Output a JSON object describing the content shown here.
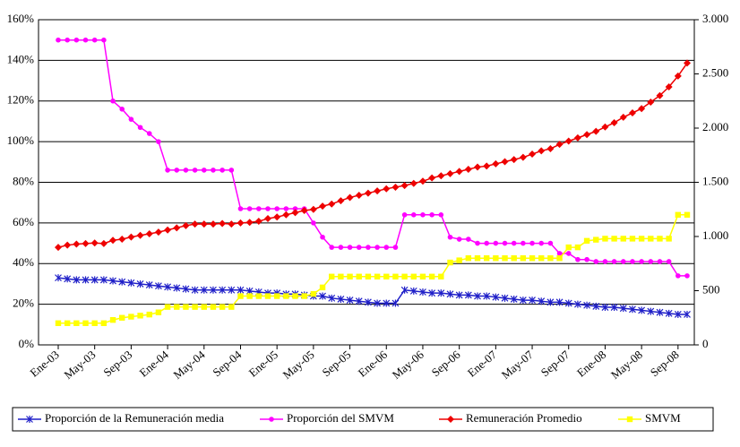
{
  "chart_data": {
    "type": "line",
    "categories": [
      "Ene-03",
      null,
      null,
      null,
      "May-03",
      null,
      null,
      null,
      "Sep-03",
      null,
      null,
      null,
      "Ene-04",
      null,
      null,
      null,
      "May-04",
      null,
      null,
      null,
      "Sep-04",
      null,
      null,
      null,
      "Ene-05",
      null,
      null,
      null,
      "May-05",
      null,
      null,
      null,
      "Sep-05",
      null,
      null,
      null,
      "Ene-06",
      null,
      null,
      null,
      "May-06",
      null,
      null,
      null,
      "Sep-06",
      null,
      null,
      null,
      "Ene-07",
      null,
      null,
      null,
      "May-07",
      null,
      null,
      null,
      "Sep-07",
      null,
      null,
      null,
      "Ene-08",
      null,
      null,
      null,
      "May-08",
      null,
      null,
      null,
      "Sep-08",
      null
    ],
    "ylim": [
      0,
      160
    ],
    "yticks": [
      {
        "value": 0,
        "label": "0%"
      },
      {
        "value": 20,
        "label": "20%"
      },
      {
        "value": 40,
        "label": "40%"
      },
      {
        "value": 60,
        "label": "60%"
      },
      {
        "value": 80,
        "label": "80%"
      },
      {
        "value": 100,
        "label": "100%"
      },
      {
        "value": 120,
        "label": "120%"
      },
      {
        "value": 140,
        "label": "140%"
      },
      {
        "value": 160,
        "label": "160%"
      }
    ],
    "y2lim": [
      0,
      3000
    ],
    "y2ticks": [
      0,
      500,
      {
        "value": 1000,
        "label": "1.000"
      },
      {
        "value": 1500,
        "label": "1.500"
      },
      {
        "value": 2000,
        "label": "2.000"
      },
      {
        "value": 2500,
        "label": "2.500"
      },
      {
        "value": 3000,
        "label": "3.000"
      }
    ],
    "grid": true,
    "legend": "bottom",
    "series": [
      {
        "name": "Proporción de la Remuneración media",
        "color": "#1f1fc8",
        "marker": "x",
        "values": [
          33,
          32.5,
          32,
          32,
          32,
          32,
          31.5,
          31,
          30.5,
          30,
          29.5,
          29,
          28.5,
          28,
          27.5,
          27,
          27,
          27,
          27,
          27,
          27,
          26.5,
          26,
          25.5,
          25.5,
          25,
          25,
          24.5,
          24,
          24,
          23,
          22.5,
          22,
          21.5,
          21,
          20.5,
          20.5,
          20.5,
          27,
          26.5,
          26,
          25.5,
          25.5,
          25,
          24.5,
          24.5,
          24,
          24,
          23.5,
          23,
          22.5,
          22,
          22,
          21.5,
          21,
          21,
          20.5,
          20,
          19.5,
          19,
          18.5,
          18.5,
          18,
          17.5,
          17,
          16.5,
          16,
          15.5,
          15,
          15
        ]
      },
      {
        "name": "Proporción del SMVM",
        "color": "#ff00ff",
        "marker": "circle",
        "values": [
          150,
          150,
          150,
          150,
          150,
          150,
          120,
          116,
          111,
          107,
          104,
          100,
          86,
          86,
          86,
          86,
          86,
          86,
          86,
          86,
          67,
          67,
          67,
          67,
          67,
          67,
          67,
          67,
          60,
          53,
          48,
          48,
          48,
          48,
          48,
          48,
          48,
          48,
          64,
          64,
          64,
          64,
          64,
          53,
          52,
          52,
          50,
          50,
          50,
          50,
          50,
          50,
          50,
          50,
          50,
          45,
          45,
          42,
          42,
          41,
          41,
          41,
          41,
          41,
          41,
          41,
          41,
          41,
          34,
          34
        ]
      },
      {
        "name": "Remuneración Promedio",
        "color": "#ee0000",
        "marker": "diamond",
        "axis": "y2",
        "values": [
          900,
          920,
          930,
          935,
          940,
          935,
          965,
          975,
          995,
          1010,
          1025,
          1040,
          1060,
          1080,
          1100,
          1115,
          1115,
          1115,
          1120,
          1115,
          1125,
          1130,
          1140,
          1165,
          1180,
          1200,
          1220,
          1240,
          1250,
          1280,
          1300,
          1330,
          1360,
          1380,
          1400,
          1420,
          1440,
          1455,
          1470,
          1490,
          1510,
          1540,
          1560,
          1580,
          1600,
          1620,
          1640,
          1650,
          1670,
          1690,
          1710,
          1730,
          1760,
          1790,
          1810,
          1850,
          1880,
          1910,
          1940,
          1970,
          2010,
          2050,
          2100,
          2140,
          2180,
          2240,
          2300,
          2380,
          2480,
          2600
        ]
      },
      {
        "name": "SMVM",
        "color": "#ffff00",
        "marker": "square",
        "axis": "y2",
        "values": [
          200,
          200,
          200,
          200,
          200,
          200,
          230,
          250,
          260,
          270,
          280,
          300,
          350,
          350,
          350,
          350,
          350,
          350,
          350,
          350,
          450,
          450,
          450,
          450,
          450,
          450,
          450,
          450,
          470,
          530,
          630,
          630,
          630,
          630,
          630,
          630,
          630,
          630,
          630,
          630,
          630,
          630,
          630,
          760,
          780,
          800,
          800,
          800,
          800,
          800,
          800,
          800,
          800,
          800,
          800,
          800,
          900,
          900,
          960,
          970,
          980,
          980,
          980,
          980,
          980,
          980,
          980,
          980,
          1200,
          1200
        ]
      }
    ]
  }
}
